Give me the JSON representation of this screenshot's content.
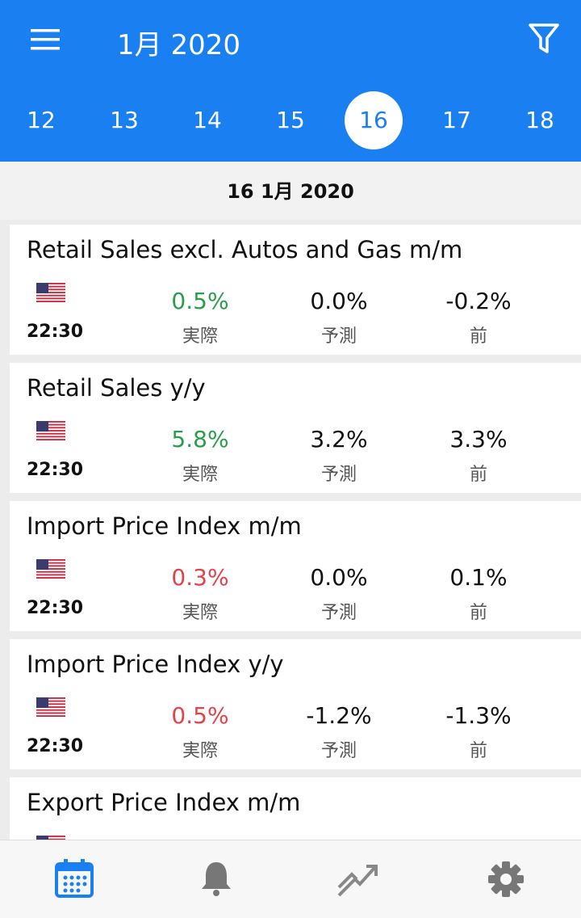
{
  "header": {
    "title": "1月 2020",
    "days": [
      "12",
      "13",
      "14",
      "15",
      "16",
      "17",
      "18"
    ],
    "selected_day": 4
  },
  "date_heading": "16 1月 2020",
  "labels": {
    "actual": "実際",
    "forecast": "予測",
    "previous": "前"
  },
  "events": [
    {
      "title": "Retail Sales excl. Autos and Gas m/m",
      "time": "22:30",
      "actual": "0.5%",
      "actual_color": "#2a9d4b",
      "forecast": "0.0%",
      "previous": "-0.2%"
    },
    {
      "title": "Retail Sales y/y",
      "time": "22:30",
      "actual": "5.8%",
      "actual_color": "#2a9d4b",
      "forecast": "3.2%",
      "previous": "3.3%"
    },
    {
      "title": "Import Price Index m/m",
      "time": "22:30",
      "actual": "0.3%",
      "actual_color": "#e2434b",
      "forecast": "0.0%",
      "previous": "0.1%"
    },
    {
      "title": "Import Price Index y/y",
      "time": "22:30",
      "actual": "0.5%",
      "actual_color": "#e2434b",
      "forecast": "-1.2%",
      "previous": "-1.3%"
    },
    {
      "title": "Export Price Index m/m"
    }
  ]
}
